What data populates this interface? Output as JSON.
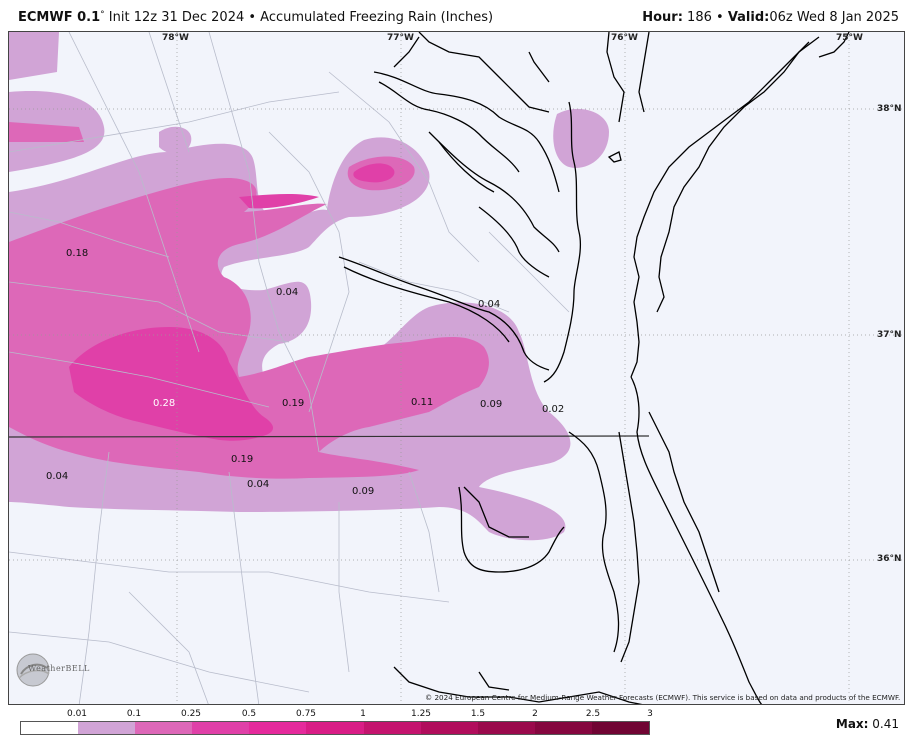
{
  "header": {
    "model": "ECMWF 0.1",
    "deg_symbol": "°",
    "init_text": "Init 12z 31 Dec 2024 • Accumulated Freezing Rain (Inches)",
    "hour_label": "Hour:",
    "hour_value": "186 •",
    "valid_label": "Valid:",
    "valid_value": "06z Wed 8 Jan 2025"
  },
  "map": {
    "lon_labels": [
      "78°W",
      "77°W",
      "76°W",
      "75°W"
    ],
    "lat_labels": [
      "38°N",
      "37°N",
      "36°N"
    ],
    "value_labels": [
      "0.18",
      "0.04",
      "0.04",
      "0.28",
      "0.19",
      "0.11",
      "0.09",
      "0.02",
      "0.19",
      "0.04",
      "0.04",
      "0.09"
    ],
    "copyright": "© 2024 European Centre for Medium-Range Weather Forecasts (ECMWF). This service is based on data and products of the ECMWF.",
    "logo_text": "WeatherBELL",
    "colors": {
      "background": "#f2f4fb",
      "level_0_01": "#d1a4d6",
      "level_0_1": "#dd68b8",
      "level_0_25": "#e040a8",
      "coast": "#000000",
      "county": "#b8bccb"
    }
  },
  "legend": {
    "labels": [
      "0.01",
      "0.1",
      "0.25",
      "0.5",
      "0.75",
      "1",
      "1.25",
      "1.5",
      "2",
      "2.5",
      "3"
    ],
    "colors": [
      "#ffffff",
      "#d1a4d6",
      "#dd68b8",
      "#e040a8",
      "#e52a9c",
      "#d91d86",
      "#c4146e",
      "#b10d5c",
      "#9a0a4c",
      "#85073f",
      "#700433"
    ],
    "max_label": "Max:",
    "max_value": "0.41"
  }
}
